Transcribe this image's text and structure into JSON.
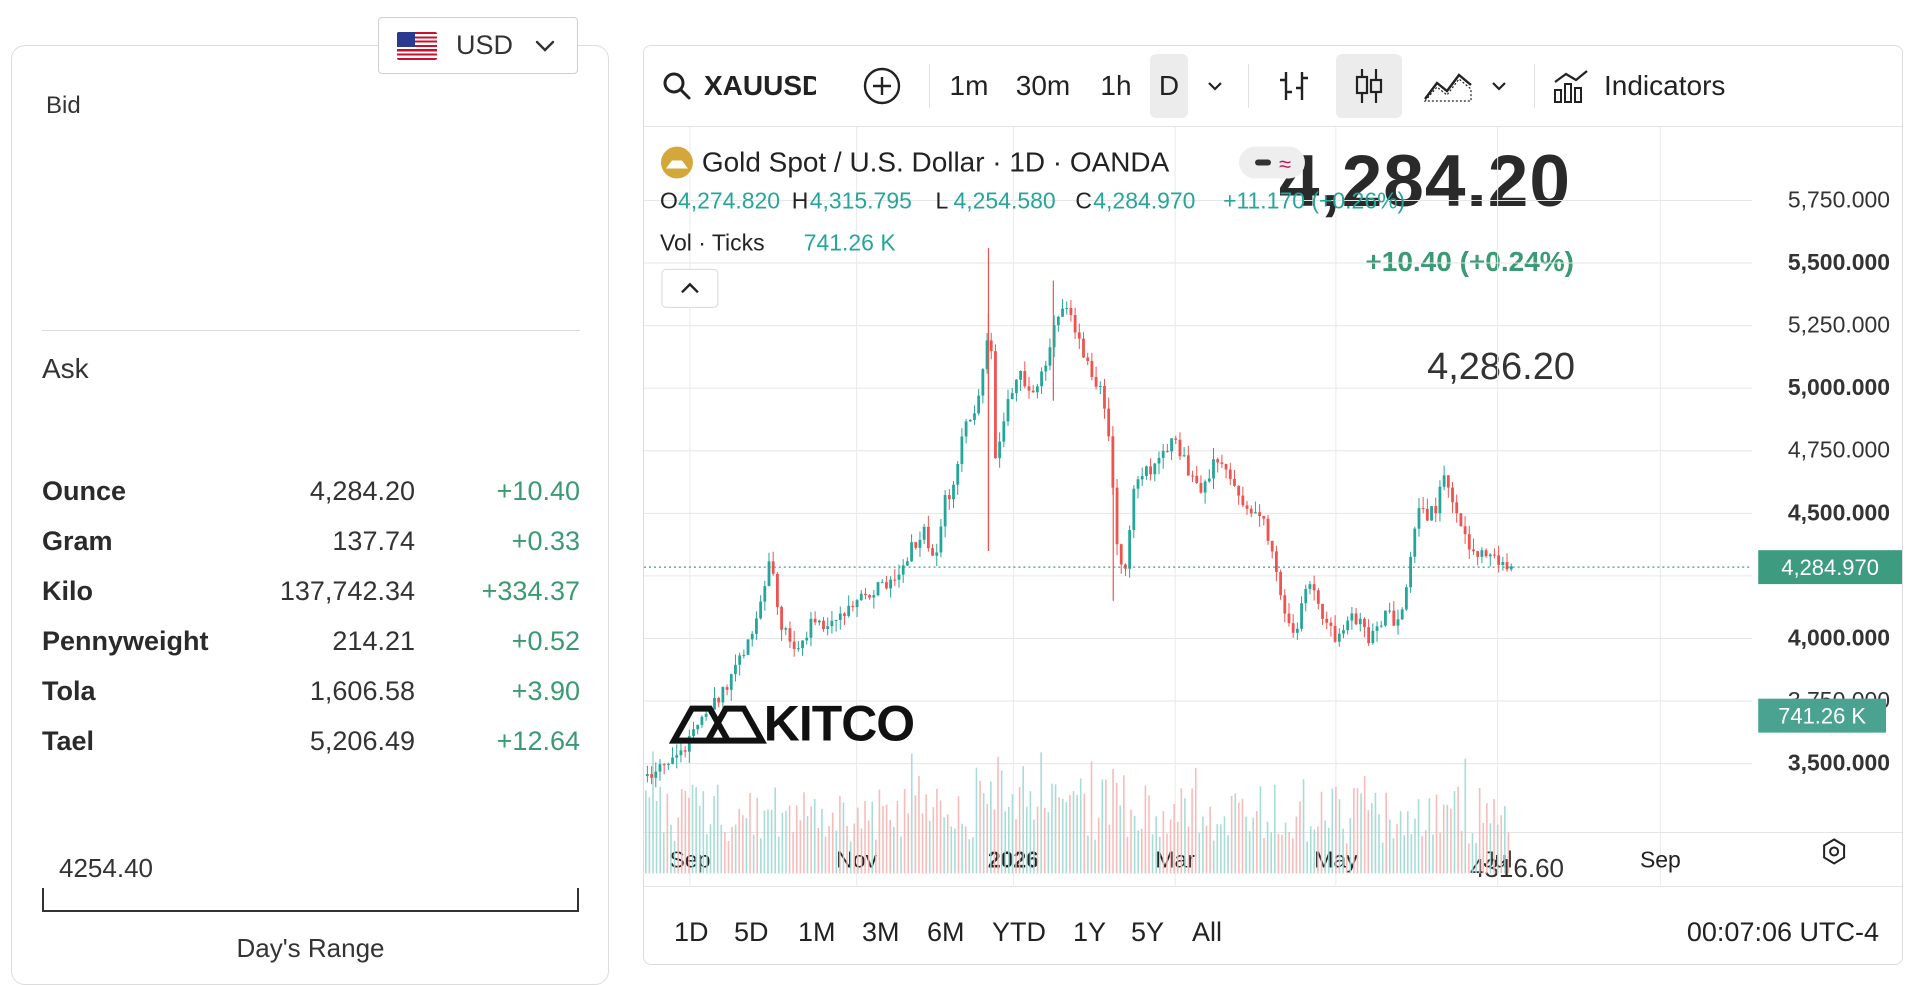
{
  "currency": {
    "label": "USD"
  },
  "quote": {
    "bid_label": "Bid",
    "bid": "4,284.20",
    "change": "+10.40 (+0.24%)",
    "ask_label": "Ask",
    "ask": "4,286.20"
  },
  "units": [
    {
      "name": "Ounce",
      "price": "4,284.20",
      "change": "+10.40"
    },
    {
      "name": "Gram",
      "price": "137.74",
      "change": "+0.33"
    },
    {
      "name": "Kilo",
      "price": "137,742.34",
      "change": "+334.37"
    },
    {
      "name": "Pennyweight",
      "price": "214.21",
      "change": "+0.52"
    },
    {
      "name": "Tola",
      "price": "1,606.58",
      "change": "+3.90"
    },
    {
      "name": "Tael",
      "price": "5,206.49",
      "change": "+12.64"
    }
  ],
  "day_range": {
    "low": "4254.40",
    "high": "4316.60",
    "caption": "Day's Range"
  },
  "toolbar": {
    "symbol": "XAUUSD",
    "intervals": [
      "1m",
      "30m",
      "1h",
      "D"
    ],
    "active_interval": "D",
    "indicators_label": "Indicators"
  },
  "legend": {
    "title": "Gold Spot / U.S. Dollar · 1D · OANDA",
    "o_label": "O",
    "o": "4,274.820",
    "h_label": "H",
    "h": "4,315.795",
    "l_label": "L",
    "l": "4,254.580",
    "c_label": "C",
    "c": "4,284.970",
    "change": "+11.170 (+0.26%)",
    "vol_label": "Vol · Ticks",
    "vol": "741.26 K"
  },
  "watermark": "KITCO",
  "ranges": [
    "1D",
    "5D",
    "1M",
    "3M",
    "6M",
    "YTD",
    "1Y",
    "5Y",
    "All"
  ],
  "clock": "00:07:06 UTC-4",
  "colors": {
    "up": "#26a69a",
    "down": "#ef5350",
    "accent": "#3a9a73",
    "price_tag": "#3d9c80",
    "vol_tag": "#4aa391"
  },
  "chart_data": {
    "type": "candlestick",
    "x_ticks": [
      "Sep",
      "Nov",
      "2026",
      "Mar",
      "May",
      "Jul",
      "Sep"
    ],
    "y_ticks": [
      "5,750.000",
      "5,500.000",
      "5,250.000",
      "5,000.000",
      "4,750.000",
      "4,500.000",
      "4,250.000",
      "4,000.000",
      "3,750.000",
      "3,500.000"
    ],
    "ylim": [
      3450,
      5800
    ],
    "last_price": 4284.97,
    "last_price_label": "4,284.970",
    "vol_tag_label": "741.26 K",
    "path_points": [
      [
        0,
        3450
      ],
      [
        20,
        3480
      ],
      [
        40,
        3560
      ],
      [
        60,
        3680
      ],
      [
        80,
        3800
      ],
      [
        100,
        3950
      ],
      [
        118,
        4150
      ],
      [
        125,
        4340
      ],
      [
        135,
        4050
      ],
      [
        150,
        3950
      ],
      [
        170,
        4080
      ],
      [
        190,
        4050
      ],
      [
        210,
        4160
      ],
      [
        230,
        4200
      ],
      [
        250,
        4220
      ],
      [
        265,
        4350
      ],
      [
        280,
        4430
      ],
      [
        290,
        4300
      ],
      [
        300,
        4550
      ],
      [
        310,
        4620
      ],
      [
        320,
        4850
      ],
      [
        335,
        4950
      ],
      [
        345,
        5300
      ],
      [
        350,
        4700
      ],
      [
        360,
        4900
      ],
      [
        375,
        5050
      ],
      [
        390,
        4950
      ],
      [
        410,
        5250
      ],
      [
        425,
        5330
      ],
      [
        440,
        5100
      ],
      [
        455,
        5000
      ],
      [
        465,
        4800
      ],
      [
        470,
        4450
      ],
      [
        480,
        4250
      ],
      [
        490,
        4600
      ],
      [
        510,
        4700
      ],
      [
        530,
        4800
      ],
      [
        545,
        4650
      ],
      [
        560,
        4600
      ],
      [
        575,
        4750
      ],
      [
        590,
        4600
      ],
      [
        605,
        4500
      ],
      [
        620,
        4450
      ],
      [
        635,
        4200
      ],
      [
        650,
        4000
      ],
      [
        665,
        4250
      ],
      [
        680,
        4050
      ],
      [
        695,
        4000
      ],
      [
        710,
        4100
      ],
      [
        725,
        3980
      ],
      [
        740,
        4100
      ],
      [
        755,
        4050
      ],
      [
        765,
        4300
      ],
      [
        775,
        4500
      ],
      [
        790,
        4500
      ],
      [
        800,
        4650
      ],
      [
        815,
        4450
      ],
      [
        830,
        4350
      ],
      [
        845,
        4350
      ],
      [
        860,
        4300
      ],
      [
        868,
        4285
      ]
    ],
    "volume": "daily tick volume bars, latest 741.26 K"
  }
}
